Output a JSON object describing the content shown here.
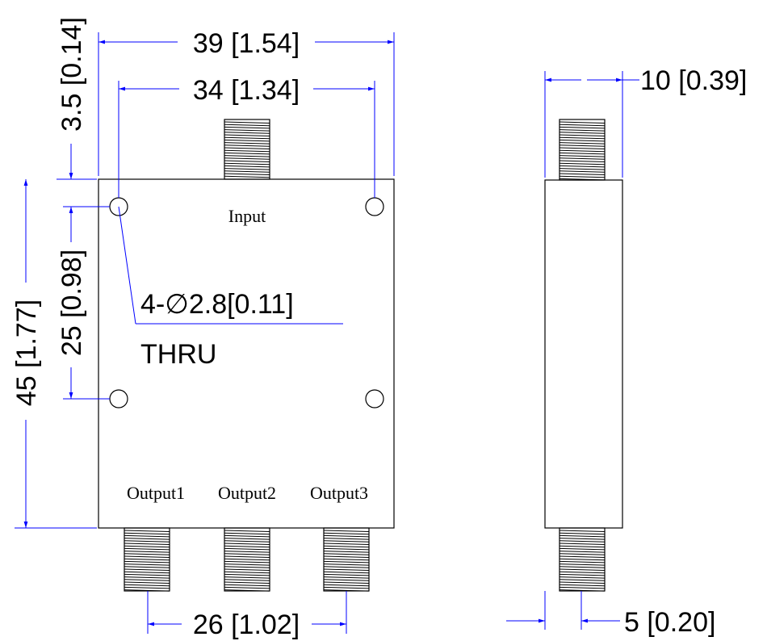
{
  "front_view": {
    "dim_overall_width": "39 [1.54]",
    "dim_hole_spacing_x": "34 [1.34]",
    "dim_edge_offset": "3.5 [0.14]",
    "dim_overall_height": "45 [1.77]",
    "dim_hole_spacing_y": "25 [0.98]",
    "dim_output_pitch": "26 [1.02]",
    "hole_note_line1": "4-∅2.8[0.11]",
    "hole_note_line2": "THRU",
    "port_input": "Input",
    "port_output1": "Output1",
    "port_output2": "Output2",
    "port_output3": "Output3"
  },
  "side_view": {
    "dim_thickness": "10 [0.39]",
    "dim_connector_offset": "5 [0.20]"
  },
  "colors": {
    "outline": "#000000",
    "dimension": "#0000ff"
  }
}
